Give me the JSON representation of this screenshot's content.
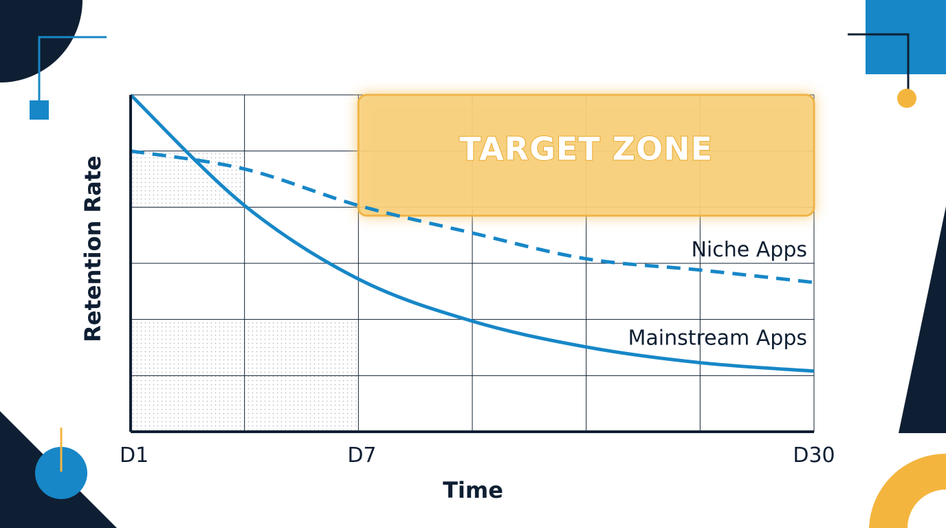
{
  "colors": {
    "navy": "#0f1f33",
    "blue": "#1787c7",
    "yellow": "#f4b53f",
    "zone_fill": "#f7cf7a",
    "zone_stroke": "#f0b44a",
    "grid": "#0f1f33",
    "dots": "#c5c9ce"
  },
  "chart_data": {
    "type": "line",
    "xlabel": "Time",
    "ylabel": "Retention Rate",
    "x_ticks": [
      "D1",
      "D7",
      "D30"
    ],
    "grid": true,
    "series": [
      {
        "name": "Niche Apps",
        "style": "dashed",
        "color": "#1787c7",
        "x": [
          0,
          1,
          2,
          3,
          4,
          5,
          6
        ],
        "y": [
          5.0,
          4.68,
          4.03,
          3.54,
          3.08,
          2.88,
          2.66
        ]
      },
      {
        "name": "Mainstream Apps",
        "style": "solid",
        "color": "#1787c7",
        "x": [
          0,
          1,
          2,
          3,
          4,
          5,
          6
        ],
        "y": [
          6.0,
          4.03,
          2.72,
          1.97,
          1.51,
          1.23,
          1.08
        ]
      }
    ],
    "annotations": [
      {
        "text": "TARGET ZONE",
        "x_range": [
          2,
          6
        ],
        "y_range": [
          3.85,
          6.0
        ]
      }
    ],
    "shaded_regions": [
      {
        "x_range": [
          0,
          1
        ],
        "y_range": [
          4.0,
          5.0
        ]
      },
      {
        "x_range": [
          0,
          2
        ],
        "y_range": [
          0,
          2.0
        ]
      }
    ],
    "xlim": [
      0,
      6
    ],
    "ylim": [
      0,
      6
    ]
  }
}
